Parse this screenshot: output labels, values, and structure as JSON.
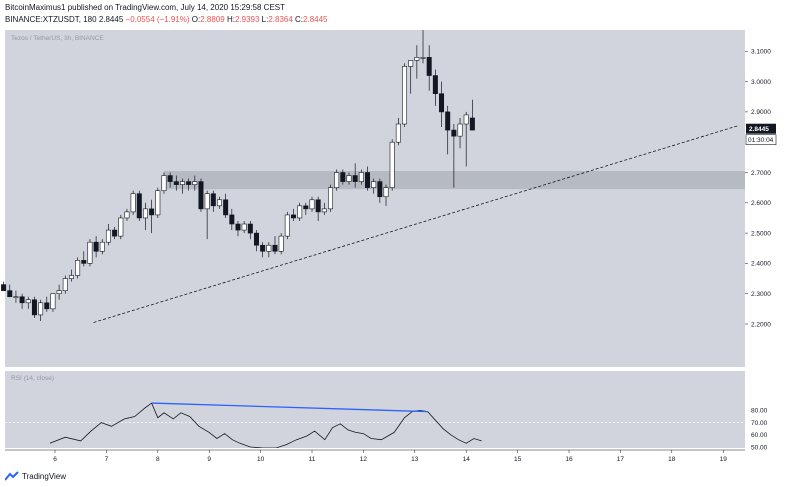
{
  "header": {
    "line1": "BitcoinMaximus1 published on TradingView.com, July 14, 2020 15:29:58 CEST",
    "symbol_prefix": "BINANCE:XTZUSDT, 180",
    "price": "2.8445",
    "change": "−0.0554 (−1.91%)",
    "o_label": "O:",
    "o_value": "2.8809",
    "h_label": "H:",
    "h_value": "2.9393",
    "l_label": "L:",
    "l_value": "2.8364",
    "c_label": "C:",
    "c_value": "2.8445"
  },
  "footer": {
    "brand": "TradingView",
    "brand_icon": "tradingview-logo-icon"
  },
  "colors": {
    "panel_bg": "#d1d4dc",
    "page_bg": "#ffffff",
    "price_tag_bg": "#131722",
    "down_candle": "#131722",
    "up_candle": "#ffffff",
    "divergence_line": "#2962ff",
    "sr_zone": "#b2b5be"
  },
  "chart_data": {
    "type": "candlestick",
    "pane_label": "Tezos / TetherUS, 3h, BINANCE",
    "price_axis_ticks": [
      "3.2000",
      "3.1000",
      "3.0000",
      "2.9000",
      "2.7000",
      "2.6000",
      "2.5000",
      "2.4000",
      "2.3000",
      "2.2000"
    ],
    "last_price_label": "2.8445",
    "countdown_label": "01:30:04",
    "time_axis_ticks": [
      "6",
      "7",
      "8",
      "9",
      "10",
      "11",
      "12",
      "13",
      "14",
      "15",
      "16",
      "17",
      "18",
      "19"
    ],
    "support_zone": {
      "from": 2.645,
      "to": 2.705
    },
    "trendline": {
      "start": {
        "day": 6.75,
        "price": 2.205
      },
      "end": {
        "day": 19.3,
        "price": 2.855
      }
    },
    "candles": [
      [
        5.0,
        2.33,
        2.34,
        2.31,
        2.31
      ],
      [
        5.12,
        2.31,
        2.33,
        2.29,
        2.29
      ],
      [
        5.24,
        2.29,
        2.31,
        2.27,
        2.29
      ],
      [
        5.36,
        2.29,
        2.3,
        2.25,
        2.27
      ],
      [
        5.48,
        2.27,
        2.29,
        2.25,
        2.28
      ],
      [
        5.6,
        2.28,
        2.29,
        2.22,
        2.23
      ],
      [
        5.72,
        2.23,
        2.28,
        2.21,
        2.27
      ],
      [
        5.84,
        2.27,
        2.29,
        2.24,
        2.25
      ],
      [
        5.96,
        2.25,
        2.3,
        2.24,
        2.3
      ],
      [
        6.08,
        2.3,
        2.33,
        2.28,
        2.31
      ],
      [
        6.2,
        2.31,
        2.36,
        2.3,
        2.35
      ],
      [
        6.32,
        2.35,
        2.38,
        2.34,
        2.36
      ],
      [
        6.44,
        2.36,
        2.42,
        2.35,
        2.41
      ],
      [
        6.56,
        2.41,
        2.44,
        2.39,
        2.4
      ],
      [
        6.68,
        2.4,
        2.48,
        2.39,
        2.47
      ],
      [
        6.8,
        2.47,
        2.49,
        2.42,
        2.44
      ],
      [
        6.92,
        2.44,
        2.48,
        2.43,
        2.47
      ],
      [
        7.04,
        2.47,
        2.53,
        2.46,
        2.51
      ],
      [
        7.16,
        2.51,
        2.52,
        2.48,
        2.49
      ],
      [
        7.28,
        2.49,
        2.56,
        2.48,
        2.55
      ],
      [
        7.4,
        2.55,
        2.58,
        2.54,
        2.57
      ],
      [
        7.52,
        2.57,
        2.64,
        2.56,
        2.63
      ],
      [
        7.64,
        2.63,
        2.64,
        2.54,
        2.55
      ],
      [
        7.76,
        2.55,
        2.6,
        2.51,
        2.58
      ],
      [
        7.88,
        2.58,
        2.61,
        2.5,
        2.56
      ],
      [
        8.0,
        2.56,
        2.65,
        2.55,
        2.64
      ],
      [
        8.12,
        2.64,
        2.7,
        2.63,
        2.69
      ],
      [
        8.24,
        2.69,
        2.7,
        2.65,
        2.67
      ],
      [
        8.36,
        2.67,
        2.69,
        2.64,
        2.66
      ],
      [
        8.48,
        2.66,
        2.68,
        2.63,
        2.67
      ],
      [
        8.6,
        2.67,
        2.68,
        2.64,
        2.66
      ],
      [
        8.72,
        2.66,
        2.69,
        2.64,
        2.67
      ],
      [
        8.84,
        2.67,
        2.68,
        2.57,
        2.58
      ],
      [
        8.96,
        2.58,
        2.64,
        2.48,
        2.63
      ],
      [
        9.08,
        2.63,
        2.64,
        2.57,
        2.59
      ],
      [
        9.2,
        2.59,
        2.62,
        2.58,
        2.61
      ],
      [
        9.32,
        2.61,
        2.63,
        2.55,
        2.56
      ],
      [
        9.44,
        2.56,
        2.58,
        2.51,
        2.53
      ],
      [
        9.56,
        2.53,
        2.54,
        2.49,
        2.51
      ],
      [
        9.68,
        2.51,
        2.54,
        2.5,
        2.53
      ],
      [
        9.8,
        2.53,
        2.54,
        2.48,
        2.5
      ],
      [
        9.92,
        2.5,
        2.51,
        2.44,
        2.46
      ],
      [
        10.04,
        2.46,
        2.47,
        2.42,
        2.44
      ],
      [
        10.16,
        2.44,
        2.47,
        2.42,
        2.46
      ],
      [
        10.28,
        2.46,
        2.49,
        2.43,
        2.44
      ],
      [
        10.4,
        2.44,
        2.5,
        2.43,
        2.49
      ],
      [
        10.52,
        2.49,
        2.57,
        2.48,
        2.56
      ],
      [
        10.64,
        2.56,
        2.58,
        2.54,
        2.55
      ],
      [
        10.76,
        2.55,
        2.6,
        2.54,
        2.59
      ],
      [
        10.88,
        2.59,
        2.6,
        2.56,
        2.58
      ],
      [
        11.0,
        2.58,
        2.62,
        2.57,
        2.61
      ],
      [
        11.12,
        2.61,
        2.62,
        2.54,
        2.57
      ],
      [
        11.24,
        2.57,
        2.6,
        2.56,
        2.58
      ],
      [
        11.36,
        2.58,
        2.66,
        2.57,
        2.65
      ],
      [
        11.48,
        2.65,
        2.71,
        2.64,
        2.7
      ],
      [
        11.6,
        2.7,
        2.71,
        2.66,
        2.67
      ],
      [
        11.72,
        2.67,
        2.7,
        2.66,
        2.69
      ],
      [
        11.84,
        2.69,
        2.73,
        2.65,
        2.67
      ],
      [
        11.96,
        2.67,
        2.71,
        2.66,
        2.7
      ],
      [
        12.08,
        2.7,
        2.72,
        2.64,
        2.65
      ],
      [
        12.2,
        2.65,
        2.68,
        2.63,
        2.67
      ],
      [
        12.32,
        2.67,
        2.68,
        2.6,
        2.62
      ],
      [
        12.44,
        2.62,
        2.66,
        2.59,
        2.65
      ],
      [
        12.56,
        2.65,
        2.81,
        2.64,
        2.8
      ],
      [
        12.68,
        2.8,
        2.88,
        2.79,
        2.86
      ],
      [
        12.8,
        2.86,
        3.06,
        2.85,
        3.05
      ],
      [
        12.92,
        3.05,
        3.07,
        2.96,
        3.07
      ],
      [
        13.04,
        3.07,
        3.12,
        3.01,
        3.08
      ],
      [
        13.16,
        3.08,
        3.17,
        3.06,
        3.08
      ],
      [
        13.28,
        3.08,
        3.12,
        2.97,
        3.02
      ],
      [
        13.4,
        3.02,
        3.04,
        2.92,
        2.96
      ],
      [
        13.52,
        2.96,
        3.0,
        2.85,
        2.9
      ],
      [
        13.64,
        2.9,
        2.92,
        2.76,
        2.84
      ],
      [
        13.76,
        2.84,
        2.86,
        2.65,
        2.82
      ],
      [
        13.88,
        2.82,
        2.88,
        2.78,
        2.86
      ],
      [
        14.0,
        2.86,
        2.9,
        2.72,
        2.89
      ],
      [
        14.12,
        2.88,
        2.94,
        2.84,
        2.84
      ]
    ],
    "rsi": {
      "label": "RSI (14, close)",
      "ticks": [
        "80.00",
        "70.00",
        "60.00",
        "50.00"
      ],
      "upper_band": 70,
      "visible_min": 50,
      "values": [
        [
          5.9,
          53
        ],
        [
          6.2,
          58
        ],
        [
          6.5,
          55
        ],
        [
          6.7,
          63
        ],
        [
          6.9,
          70
        ],
        [
          7.1,
          67
        ],
        [
          7.35,
          73
        ],
        [
          7.55,
          75
        ],
        [
          7.75,
          82
        ],
        [
          7.88,
          86
        ],
        [
          8.0,
          74
        ],
        [
          8.12,
          78
        ],
        [
          8.3,
          73
        ],
        [
          8.45,
          78
        ],
        [
          8.62,
          75
        ],
        [
          8.8,
          67
        ],
        [
          9.0,
          62
        ],
        [
          9.15,
          57
        ],
        [
          9.3,
          61
        ],
        [
          9.45,
          56
        ],
        [
          9.6,
          53
        ],
        [
          9.8,
          50
        ],
        [
          10.05,
          47
        ],
        [
          10.3,
          48
        ],
        [
          10.5,
          52
        ],
        [
          10.7,
          56
        ],
        [
          10.9,
          59
        ],
        [
          11.05,
          63
        ],
        [
          11.25,
          56
        ],
        [
          11.4,
          66
        ],
        [
          11.55,
          69
        ],
        [
          11.7,
          64
        ],
        [
          11.85,
          62
        ],
        [
          12.0,
          61
        ],
        [
          12.15,
          57
        ],
        [
          12.35,
          56
        ],
        [
          12.6,
          62
        ],
        [
          12.8,
          74
        ],
        [
          12.95,
          79
        ],
        [
          13.1,
          80
        ],
        [
          13.25,
          79
        ],
        [
          13.4,
          72
        ],
        [
          13.55,
          65
        ],
        [
          13.7,
          60
        ],
        [
          13.85,
          56
        ],
        [
          14.0,
          53
        ],
        [
          14.15,
          57
        ],
        [
          14.3,
          55
        ]
      ],
      "divergence": {
        "from": [
          7.88,
          86
        ],
        "to": [
          13.25,
          79
        ]
      }
    }
  }
}
